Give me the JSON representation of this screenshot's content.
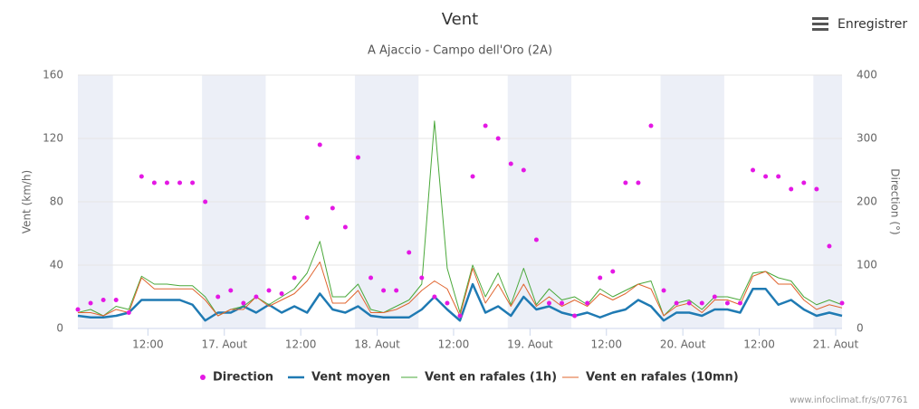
{
  "chart_data": {
    "type": "line",
    "title": "Vent",
    "subtitle": "A Ajaccio - Campo dell'Oro (2A)",
    "y_label": "Vent (km/h)",
    "y2_label": "Direction (°)",
    "menu_label": "Enregistrer",
    "credit": "www.infoclimat.fr/s/07761",
    "xlim": [
      0,
      120
    ],
    "xticks": [
      {
        "value": 11,
        "label": "12:00"
      },
      {
        "value": 23,
        "label": "17. Aout"
      },
      {
        "value": 35,
        "label": "12:00"
      },
      {
        "value": 47,
        "label": "18. Aout"
      },
      {
        "value": 59,
        "label": "12:00"
      },
      {
        "value": 71,
        "label": "19. Aout"
      },
      {
        "value": 83,
        "label": "12:00"
      },
      {
        "value": 95,
        "label": "20. Aout"
      },
      {
        "value": 107,
        "label": "12:00"
      },
      {
        "value": 119,
        "label": "21. Aout"
      }
    ],
    "ylim": [
      0,
      160
    ],
    "yticks": [
      0,
      40,
      80,
      120,
      160
    ],
    "y2lim": [
      0,
      400
    ],
    "y2ticks": [
      0,
      100,
      200,
      300,
      400
    ],
    "plot_bands": [
      [
        0,
        5.5
      ],
      [
        19.5,
        29.5
      ],
      [
        43.5,
        53.5
      ],
      [
        67.5,
        77.5
      ],
      [
        91.5,
        101.5
      ],
      [
        115.5,
        120
      ]
    ],
    "band_color": "#eceff7",
    "x": [
      0,
      2,
      4,
      6,
      8,
      10,
      12,
      14,
      16,
      18,
      20,
      22,
      24,
      26,
      28,
      30,
      32,
      34,
      36,
      38,
      40,
      42,
      44,
      46,
      48,
      50,
      52,
      54,
      56,
      58,
      60,
      62,
      64,
      66,
      68,
      70,
      72,
      74,
      76,
      78,
      80,
      82,
      84,
      86,
      88,
      90,
      92,
      94,
      96,
      98,
      100,
      102,
      104,
      106,
      108,
      110,
      112,
      114,
      116,
      118,
      120
    ],
    "series": [
      {
        "name": "Direction",
        "color": "#e418e4",
        "axis": "y2",
        "kind": "scatter",
        "values": [
          30,
          40,
          45,
          45,
          25,
          240,
          230,
          230,
          230,
          230,
          200,
          50,
          60,
          40,
          50,
          60,
          55,
          80,
          175,
          290,
          190,
          160,
          270,
          80,
          60,
          60,
          120,
          80,
          50,
          40,
          20,
          240,
          320,
          300,
          260,
          250,
          140,
          40,
          40,
          20,
          40,
          80,
          90,
          230,
          230,
          320,
          60,
          40,
          40,
          40,
          50,
          40,
          40,
          250,
          240,
          240,
          220,
          230,
          220,
          130,
          40
        ]
      },
      {
        "name": "Vent moyen",
        "color": "#1f7ab3",
        "width": 2.5,
        "values": [
          8,
          7,
          7,
          8,
          10,
          18,
          18,
          18,
          18,
          15,
          5,
          10,
          10,
          14,
          10,
          15,
          10,
          14,
          10,
          22,
          12,
          10,
          14,
          8,
          7,
          7,
          7,
          12,
          20,
          12,
          5,
          28,
          10,
          14,
          8,
          20,
          12,
          14,
          10,
          8,
          10,
          7,
          10,
          12,
          18,
          14,
          5,
          10,
          10,
          8,
          12,
          12,
          10,
          25,
          25,
          15,
          18,
          12,
          8,
          10,
          8
        ]
      },
      {
        "name": "Vent en rafales (1h)",
        "color": "#4aa83a",
        "width": 1,
        "values": [
          10,
          12,
          8,
          14,
          12,
          33,
          28,
          28,
          27,
          27,
          20,
          8,
          12,
          14,
          20,
          15,
          20,
          25,
          35,
          55,
          20,
          20,
          28,
          12,
          10,
          14,
          18,
          28,
          131,
          38,
          10,
          40,
          20,
          35,
          15,
          38,
          15,
          25,
          18,
          20,
          15,
          25,
          20,
          24,
          28,
          30,
          8,
          16,
          18,
          12,
          20,
          20,
          18,
          35,
          36,
          32,
          30,
          20,
          15,
          18,
          15
        ]
      },
      {
        "name": "Vent en rafales (10mn)",
        "color": "#e0642e",
        "width": 1,
        "values": [
          10,
          10,
          8,
          12,
          10,
          32,
          25,
          25,
          25,
          25,
          18,
          8,
          12,
          12,
          20,
          14,
          18,
          22,
          30,
          42,
          16,
          16,
          24,
          10,
          10,
          12,
          16,
          24,
          30,
          25,
          8,
          38,
          16,
          28,
          14,
          28,
          14,
          20,
          14,
          18,
          14,
          22,
          18,
          22,
          28,
          25,
          8,
          14,
          16,
          10,
          18,
          18,
          15,
          33,
          36,
          28,
          28,
          18,
          12,
          15,
          13
        ]
      }
    ],
    "grid": true,
    "legend": "bottom"
  }
}
